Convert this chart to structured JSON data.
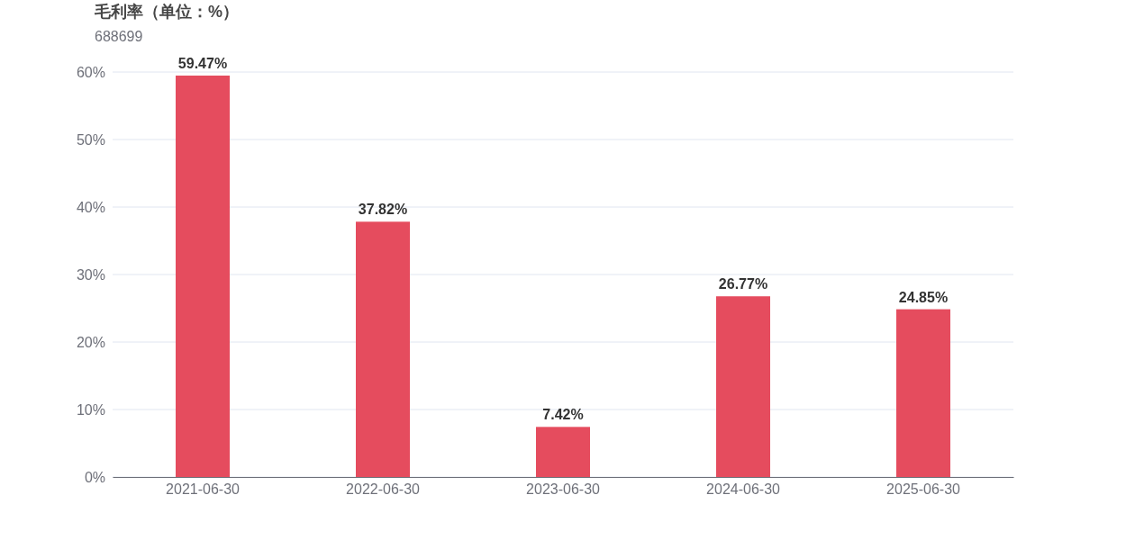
{
  "chart_data": {
    "type": "bar",
    "title": "毛利率（单位：%）",
    "subtitle": "688699",
    "categories": [
      "2021-06-30",
      "2022-06-30",
      "2023-06-30",
      "2024-06-30",
      "2025-06-30"
    ],
    "values": [
      59.47,
      37.82,
      7.42,
      26.77,
      24.85
    ],
    "value_labels": [
      "59.47%",
      "37.82%",
      "7.42%",
      "26.77%",
      "24.85%"
    ],
    "color": "#e54c5e",
    "ylim": [
      0,
      60
    ],
    "yticks": [
      {
        "value": 0,
        "label": "0%"
      },
      {
        "value": 10,
        "label": "10%"
      },
      {
        "value": 20,
        "label": "20%"
      },
      {
        "value": 30,
        "label": "30%"
      },
      {
        "value": 40,
        "label": "40%"
      },
      {
        "value": 50,
        "label": "50%"
      },
      {
        "value": 60,
        "label": "60%"
      }
    ],
    "grid": "y"
  }
}
